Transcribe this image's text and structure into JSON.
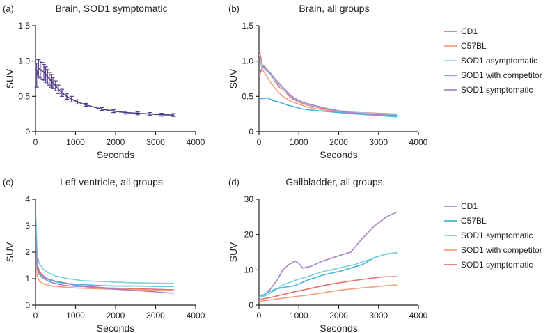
{
  "chart_data": [
    {
      "type": "line",
      "panel_label": "(a)",
      "title": "Brain, SOD1 symptomatic",
      "xlabel": "Seconds",
      "ylabel": "SUV",
      "xlim": [
        0,
        4000
      ],
      "ylim": [
        0,
        1.5
      ],
      "xticks": [
        "0",
        "1000",
        "2000",
        "3000",
        "4000"
      ],
      "yticks": [
        "0",
        "0.5",
        "1.0",
        "1.5"
      ],
      "legend": false,
      "series": [
        {
          "color": "#4f3a86",
          "error_bars": true,
          "points": [
            [
              30,
              0.8,
              0.17
            ],
            [
              75,
              0.9,
              0.12
            ],
            [
              120,
              0.88,
              0.12
            ],
            [
              165,
              0.86,
              0.12
            ],
            [
              210,
              0.84,
              0.11
            ],
            [
              255,
              0.81,
              0.11
            ],
            [
              300,
              0.78,
              0.1
            ],
            [
              345,
              0.75,
              0.09
            ],
            [
              390,
              0.72,
              0.09
            ],
            [
              435,
              0.69,
              0.08
            ],
            [
              500,
              0.65,
              0.07
            ],
            [
              570,
              0.6,
              0.06
            ],
            [
              660,
              0.55,
              0.05
            ],
            [
              780,
              0.5,
              0.04
            ],
            [
              900,
              0.46,
              0.04
            ],
            [
              1050,
              0.42,
              0.03
            ],
            [
              1250,
              0.38,
              0.02
            ],
            [
              1650,
              0.32,
              0.02
            ],
            [
              1950,
              0.29,
              0.02
            ],
            [
              2250,
              0.27,
              0.02
            ],
            [
              2550,
              0.26,
              0.02
            ],
            [
              2850,
              0.25,
              0.02
            ],
            [
              3150,
              0.24,
              0.02
            ],
            [
              3450,
              0.235,
              0.02
            ]
          ]
        }
      ]
    },
    {
      "type": "line",
      "panel_label": "(b)",
      "title": "Brain, all groups",
      "xlabel": "Seconds",
      "ylabel": "SUV",
      "xlim": [
        0,
        4000
      ],
      "ylim": [
        0,
        1.5
      ],
      "xticks": [
        "0",
        "1000",
        "2000",
        "3000",
        "4000"
      ],
      "yticks": [
        "0",
        "0.5",
        "1.0",
        "1.5"
      ],
      "legend": true,
      "series": [
        {
          "name": "CD1",
          "color": "#e8706e",
          "points": [
            [
              10,
              1.15
            ],
            [
              80,
              0.95
            ],
            [
              180,
              0.9
            ],
            [
              300,
              0.8
            ],
            [
              420,
              0.7
            ],
            [
              520,
              0.62
            ],
            [
              600,
              0.6
            ],
            [
              800,
              0.48
            ],
            [
              1000,
              0.42
            ],
            [
              1200,
              0.38
            ],
            [
              1600,
              0.33
            ],
            [
              2000,
              0.29
            ],
            [
              2500,
              0.27
            ],
            [
              3000,
              0.26
            ],
            [
              3450,
              0.25
            ]
          ]
        },
        {
          "name": "C57BL",
          "color": "#f3a07a",
          "points": [
            [
              10,
              0.8
            ],
            [
              80,
              0.88
            ],
            [
              160,
              0.82
            ],
            [
              260,
              0.72
            ],
            [
              380,
              0.63
            ],
            [
              500,
              0.55
            ],
            [
              650,
              0.48
            ],
            [
              800,
              0.43
            ],
            [
              1000,
              0.39
            ],
            [
              1200,
              0.35
            ],
            [
              1600,
              0.31
            ],
            [
              2000,
              0.28
            ],
            [
              2500,
              0.26
            ],
            [
              3000,
              0.255
            ],
            [
              3450,
              0.25
            ]
          ]
        },
        {
          "name": "SOD1 asymptomatic",
          "color": "#9dd0e6",
          "points": [
            [
              10,
              1.1
            ],
            [
              60,
              0.92
            ],
            [
              150,
              0.88
            ],
            [
              300,
              0.8
            ],
            [
              450,
              0.7
            ],
            [
              600,
              0.6
            ],
            [
              800,
              0.5
            ],
            [
              1000,
              0.43
            ],
            [
              1200,
              0.39
            ],
            [
              1600,
              0.34
            ],
            [
              2000,
              0.3
            ],
            [
              2500,
              0.27
            ],
            [
              3000,
              0.25
            ],
            [
              3450,
              0.24
            ]
          ]
        },
        {
          "name": "SOD1 with competitor",
          "color": "#45b4e0",
          "points": [
            [
              10,
              0.47
            ],
            [
              100,
              0.47
            ],
            [
              220,
              0.48
            ],
            [
              350,
              0.44
            ],
            [
              500,
              0.42
            ],
            [
              700,
              0.38
            ],
            [
              900,
              0.35
            ],
            [
              1100,
              0.32
            ],
            [
              1400,
              0.3
            ],
            [
              1800,
              0.28
            ],
            [
              2200,
              0.26
            ],
            [
              2700,
              0.24
            ],
            [
              3000,
              0.23
            ],
            [
              3450,
              0.21
            ]
          ]
        },
        {
          "name": "SOD1 symptomatic",
          "color": "#a584c4",
          "points": [
            [
              10,
              0.83
            ],
            [
              100,
              0.92
            ],
            [
              200,
              0.88
            ],
            [
              300,
              0.82
            ],
            [
              400,
              0.75
            ],
            [
              500,
              0.69
            ],
            [
              650,
              0.6
            ],
            [
              800,
              0.51
            ],
            [
              1000,
              0.44
            ],
            [
              1200,
              0.4
            ],
            [
              1600,
              0.34
            ],
            [
              2000,
              0.29
            ],
            [
              2500,
              0.26
            ],
            [
              3000,
              0.24
            ],
            [
              3450,
              0.23
            ]
          ]
        }
      ]
    },
    {
      "type": "line",
      "panel_label": "(c)",
      "title": "Left ventricle, all groups",
      "xlabel": "Seconds",
      "ylabel": "SUV",
      "xlim": [
        0,
        4000
      ],
      "ylim": [
        0,
        4
      ],
      "xticks": [
        "0",
        "1000",
        "2000",
        "3000",
        "4000"
      ],
      "yticks": [
        "0",
        "1",
        "2",
        "3",
        "4"
      ],
      "legend": false,
      "series": [
        {
          "name": "CD1",
          "color": "#e8706e",
          "points": [
            [
              10,
              2.9
            ],
            [
              40,
              1.6
            ],
            [
              100,
              1.25
            ],
            [
              200,
              1.1
            ],
            [
              300,
              1.0
            ],
            [
              500,
              0.9
            ],
            [
              700,
              0.85
            ],
            [
              1000,
              0.75
            ],
            [
              1300,
              0.7
            ],
            [
              1800,
              0.65
            ],
            [
              2500,
              0.62
            ],
            [
              3000,
              0.6
            ],
            [
              3450,
              0.58
            ]
          ]
        },
        {
          "name": "C57BL",
          "color": "#f3a07a",
          "points": [
            [
              10,
              2.2
            ],
            [
              40,
              1.1
            ],
            [
              100,
              0.9
            ],
            [
              200,
              0.8
            ],
            [
              400,
              0.72
            ],
            [
              700,
              0.68
            ],
            [
              1000,
              0.65
            ],
            [
              1500,
              0.62
            ],
            [
              2000,
              0.6
            ],
            [
              2500,
              0.58
            ],
            [
              3000,
              0.56
            ],
            [
              3450,
              0.55
            ]
          ]
        },
        {
          "name": "SOD1 asymptomatic",
          "color": "#7fcfd8",
          "points": [
            [
              10,
              3.35
            ],
            [
              40,
              1.9
            ],
            [
              100,
              1.55
            ],
            [
              200,
              1.35
            ],
            [
              350,
              1.2
            ],
            [
              500,
              1.1
            ],
            [
              800,
              1.0
            ],
            [
              1200,
              0.92
            ],
            [
              1600,
              0.9
            ],
            [
              2000,
              0.87
            ],
            [
              2500,
              0.84
            ],
            [
              3000,
              0.83
            ],
            [
              3450,
              0.82
            ]
          ]
        },
        {
          "name": "SOD1 with competitor",
          "color": "#45b4e0",
          "points": [
            [
              10,
              2.7
            ],
            [
              40,
              1.45
            ],
            [
              100,
              1.2
            ],
            [
              200,
              1.05
            ],
            [
              400,
              0.92
            ],
            [
              600,
              0.85
            ],
            [
              900,
              0.8
            ],
            [
              1200,
              0.77
            ],
            [
              1600,
              0.74
            ],
            [
              2000,
              0.72
            ],
            [
              2500,
              0.72
            ],
            [
              3000,
              0.71
            ],
            [
              3450,
              0.71
            ]
          ]
        },
        {
          "name": "SOD1 symptomatic",
          "color": "#a584c4",
          "points": [
            [
              10,
              2.4
            ],
            [
              40,
              1.4
            ],
            [
              100,
              1.15
            ],
            [
              200,
              1.0
            ],
            [
              400,
              0.85
            ],
            [
              700,
              0.75
            ],
            [
              900,
              0.72
            ],
            [
              1200,
              0.7
            ],
            [
              1600,
              0.65
            ],
            [
              2000,
              0.6
            ],
            [
              2500,
              0.55
            ],
            [
              3000,
              0.5
            ],
            [
              3450,
              0.45
            ]
          ]
        }
      ]
    },
    {
      "type": "line",
      "panel_label": "(d)",
      "title": "Gallbladder, all groups",
      "xlabel": "Seconds",
      "ylabel": "SUV",
      "xlim": [
        0,
        4000
      ],
      "ylim": [
        0,
        30
      ],
      "xticks": [
        "0",
        "1000",
        "2000",
        "3000",
        "4000"
      ],
      "yticks": [
        "0",
        "10",
        "20",
        "30"
      ],
      "legend": true,
      "series": [
        {
          "name": "CD1",
          "color": "#a584c4",
          "points": [
            [
              10,
              2.5
            ],
            [
              150,
              3.0
            ],
            [
              300,
              4.8
            ],
            [
              450,
              7.0
            ],
            [
              600,
              10.0
            ],
            [
              750,
              11.5
            ],
            [
              900,
              12.5
            ],
            [
              1000,
              11.8
            ],
            [
              1100,
              10.5
            ],
            [
              1300,
              11.0
            ],
            [
              1600,
              12.5
            ],
            [
              2000,
              14.0
            ],
            [
              2300,
              15.0
            ],
            [
              2600,
              19.0
            ],
            [
              2900,
              22.5
            ],
            [
              3200,
              25.0
            ],
            [
              3450,
              26.3
            ]
          ]
        },
        {
          "name": "C57BL",
          "color": "#45b4e0",
          "points": [
            [
              10,
              2.3
            ],
            [
              200,
              3.5
            ],
            [
              400,
              4.5
            ],
            [
              600,
              5.0
            ],
            [
              900,
              5.5
            ],
            [
              1200,
              7.0
            ],
            [
              1600,
              8.5
            ],
            [
              2000,
              9.5
            ],
            [
              2300,
              10.5
            ],
            [
              2600,
              11.5
            ],
            [
              2900,
              13.5
            ],
            [
              3200,
              14.5
            ],
            [
              3450,
              14.8
            ]
          ]
        },
        {
          "name": "SOD1 symptomatic",
          "color": "#7fcfd8",
          "points": [
            [
              10,
              2.2
            ],
            [
              200,
              2.8
            ],
            [
              400,
              4.2
            ],
            [
              600,
              5.7
            ],
            [
              900,
              7.0
            ],
            [
              1200,
              8.0
            ],
            [
              1600,
              9.5
            ],
            [
              2000,
              10.5
            ],
            [
              2400,
              11.5
            ],
            [
              2800,
              13.0
            ],
            [
              3100,
              14.2
            ],
            [
              3450,
              14.9
            ]
          ]
        },
        {
          "name": "SOD1 with competitor",
          "color": "#f3a07a",
          "points": [
            [
              10,
              1.0
            ],
            [
              300,
              1.5
            ],
            [
              600,
              2.0
            ],
            [
              900,
              2.4
            ],
            [
              1200,
              2.8
            ],
            [
              1600,
              3.5
            ],
            [
              2000,
              4.2
            ],
            [
              2400,
              4.7
            ],
            [
              2800,
              5.1
            ],
            [
              3100,
              5.4
            ],
            [
              3450,
              5.7
            ]
          ]
        },
        {
          "name": "SOD1 symptomatic",
          "color": "#e8706e",
          "points": [
            [
              10,
              1.6
            ],
            [
              300,
              2.2
            ],
            [
              600,
              3.0
            ],
            [
              900,
              3.8
            ],
            [
              1200,
              4.5
            ],
            [
              1600,
              5.5
            ],
            [
              2000,
              6.3
            ],
            [
              2400,
              7.0
            ],
            [
              2800,
              7.6
            ],
            [
              3100,
              8.0
            ],
            [
              3450,
              8.1
            ]
          ]
        }
      ]
    }
  ]
}
